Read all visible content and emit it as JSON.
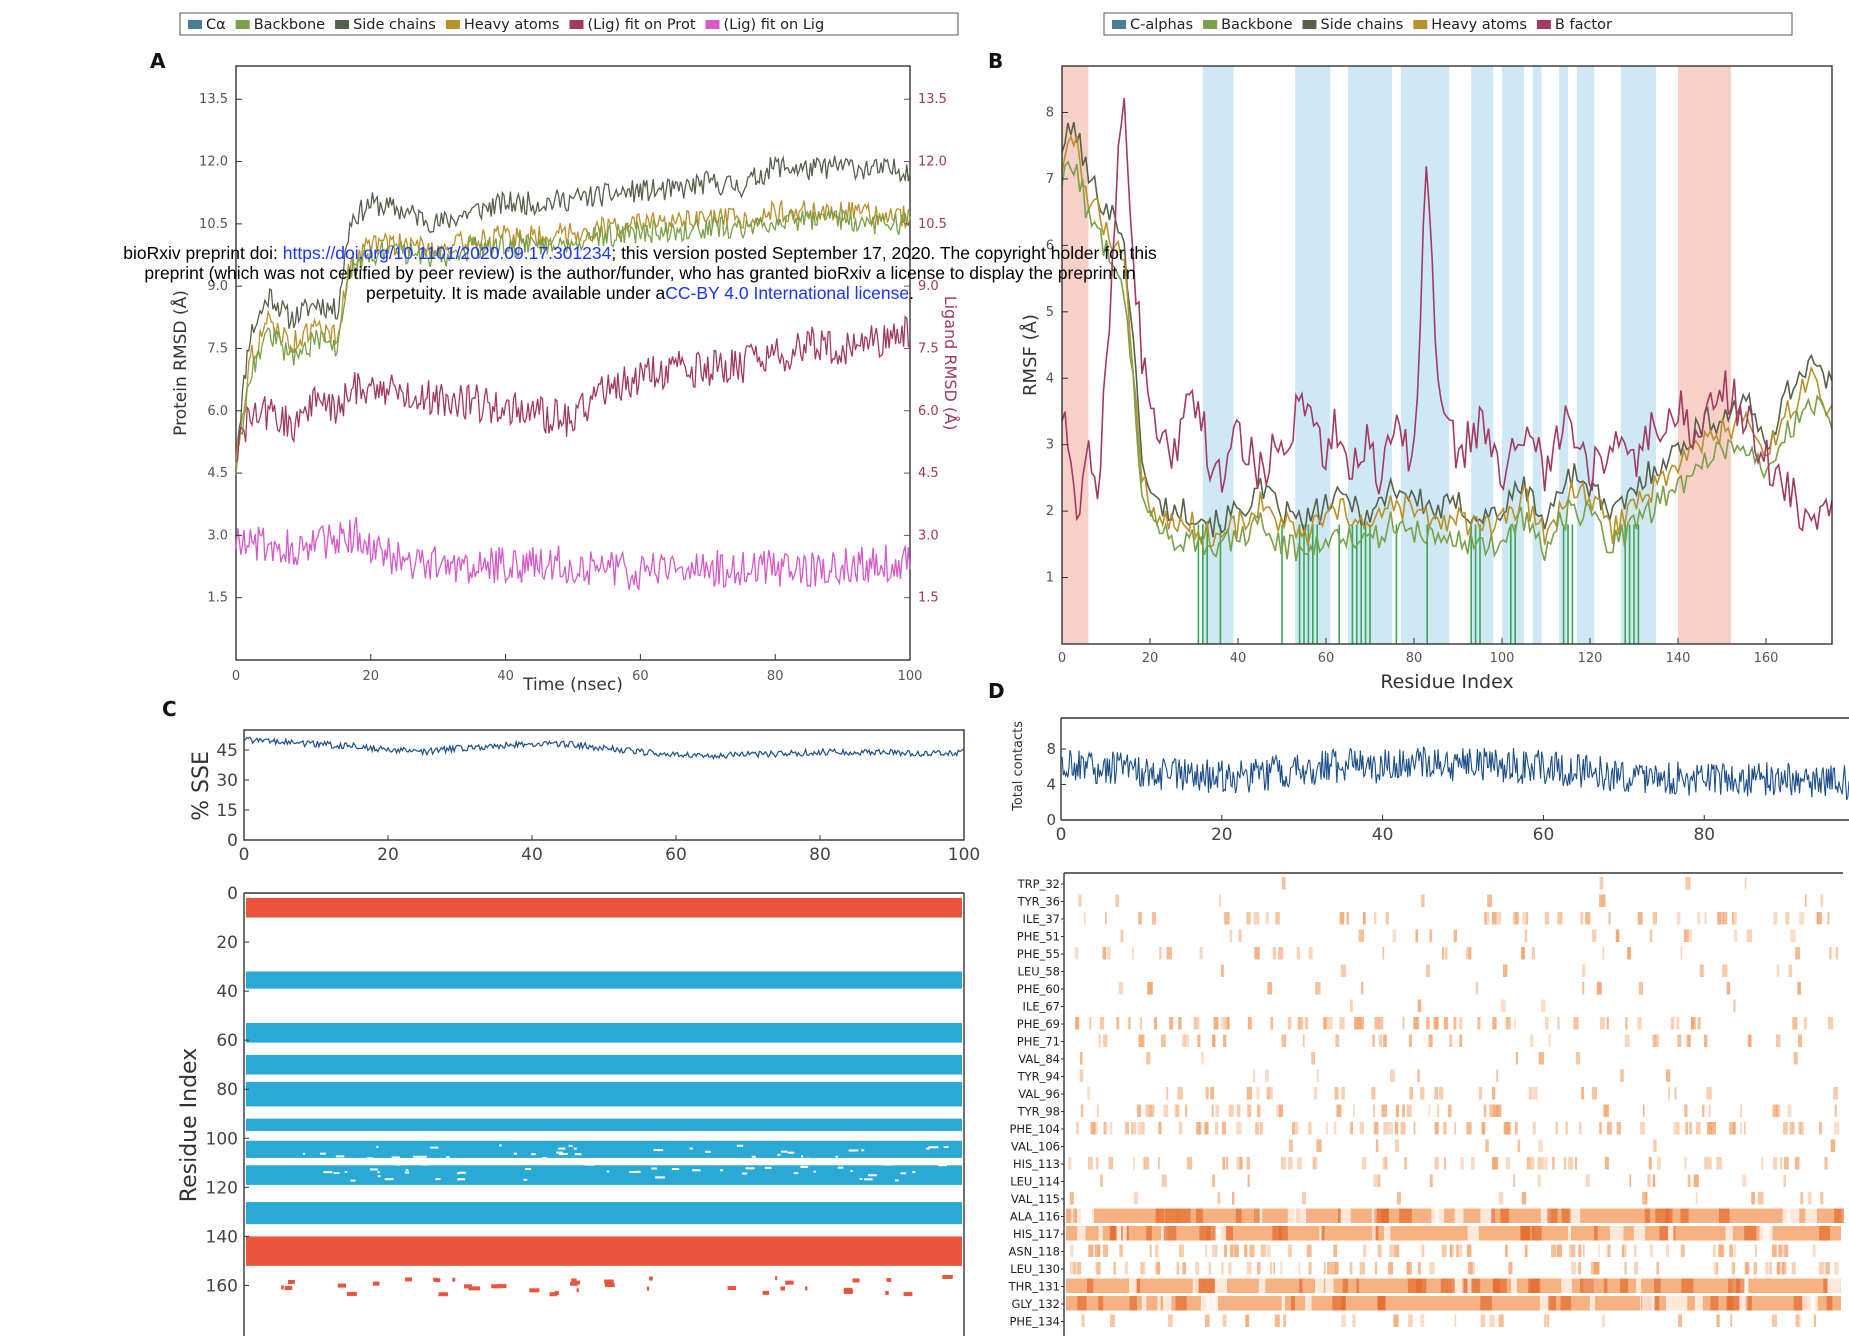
{
  "banner": {
    "prefix": "bioRxiv preprint doi: ",
    "doi_link": "https://doi.org/10.1101/2020.09.17.301234",
    "line1_rest": "; this version posted September 17, 2020. The copyright holder for this",
    "line2": "preprint (which was not certified by peer review) is the author/funder, who has granted bioRxiv a license to display the preprint in",
    "line3_pre": "perpetuity. It is made available under a",
    "license_link": "CC-BY 4.0 International license",
    "line3_post": "."
  },
  "colors": {
    "calpha": "#4a7e96",
    "backbone": "#7aa04a",
    "sidechain": "#55614a",
    "heavy": "#b8912a",
    "lig_prot": "#a23a5c",
    "lig_lig": "#d659c8",
    "bfactor": "#a33a62",
    "helix": "#e8553a",
    "strand": "#2aa9d6",
    "sse_line": "#1c4f8a",
    "contact": "#f3a36b",
    "contact_dark": "#e46b2c",
    "region_blue": "#cfe8f5",
    "region_red": "#f7d0c8",
    "green_bar": "#3aa556"
  },
  "chart_data": [
    {
      "panel": "A",
      "type": "line",
      "legend": [
        "Cα",
        "Backbone",
        "Side chains",
        "Heavy atoms",
        "(Lig) fit on Prot",
        "(Lig) fit on Lig"
      ],
      "xlabel": "Time (nsec)",
      "ylabel": "Protein RMSD (Å)",
      "ylabel_right": "Ligand RMSD (Å)",
      "xlim": [
        0,
        100
      ],
      "ylim": [
        0,
        14.3
      ],
      "x_ticks": [
        0,
        20,
        40,
        60,
        80,
        100
      ],
      "y_ticks": [
        1.5,
        3.0,
        4.5,
        6.0,
        7.5,
        9.0,
        10.5,
        12.0,
        13.5
      ],
      "y_tick_labels": [
        "1.5",
        "3.0",
        "4.5",
        "6.0",
        "7.5",
        "9.0",
        "10.5",
        "12.0",
        "13.5"
      ],
      "series": [
        {
          "name": "Side chains",
          "x": [
            0,
            2,
            5,
            8,
            12,
            15,
            17,
            20,
            25,
            30,
            35,
            40,
            45,
            50,
            55,
            60,
            65,
            70,
            75,
            80,
            85,
            90,
            95,
            100
          ],
          "y": [
            5.0,
            7.8,
            8.8,
            8.2,
            8.6,
            8.4,
            10.6,
            11.0,
            10.8,
            10.5,
            10.8,
            11.0,
            11.0,
            11.1,
            11.2,
            11.3,
            11.3,
            11.5,
            11.4,
            11.9,
            11.8,
            11.9,
            11.8,
            11.8
          ]
        },
        {
          "name": "Heavy atoms",
          "x": [
            0,
            2,
            5,
            8,
            12,
            15,
            17,
            20,
            25,
            30,
            35,
            40,
            45,
            50,
            55,
            60,
            65,
            70,
            75,
            80,
            85,
            90,
            95,
            100
          ],
          "y": [
            4.8,
            7.2,
            8.2,
            7.6,
            8.0,
            7.8,
            9.6,
            10.0,
            10.0,
            9.9,
            10.1,
            10.2,
            10.2,
            10.3,
            10.4,
            10.5,
            10.5,
            10.6,
            10.6,
            10.8,
            10.8,
            10.8,
            10.7,
            10.7
          ]
        },
        {
          "name": "Backbone",
          "x": [
            0,
            2,
            5,
            8,
            12,
            15,
            17,
            20,
            25,
            30,
            35,
            40,
            45,
            50,
            55,
            60,
            65,
            70,
            75,
            80,
            85,
            90,
            95,
            100
          ],
          "y": [
            4.6,
            6.9,
            7.9,
            7.3,
            7.7,
            7.5,
            9.4,
            9.8,
            9.8,
            9.7,
            9.9,
            10.0,
            10.0,
            10.1,
            10.2,
            10.3,
            10.3,
            10.4,
            10.4,
            10.6,
            10.6,
            10.6,
            10.5,
            10.5
          ]
        },
        {
          "name": "(Lig) fit on Prot",
          "x": [
            0,
            2,
            5,
            8,
            12,
            15,
            18,
            20,
            25,
            30,
            35,
            40,
            45,
            50,
            55,
            60,
            65,
            70,
            75,
            80,
            85,
            90,
            95,
            100
          ],
          "y": [
            5.0,
            5.8,
            6.0,
            5.6,
            6.3,
            6.0,
            6.6,
            6.6,
            6.4,
            6.3,
            6.2,
            6.1,
            5.9,
            5.8,
            6.6,
            6.8,
            7.0,
            7.0,
            7.1,
            7.3,
            7.6,
            7.4,
            7.7,
            7.9
          ]
        },
        {
          "name": "(Lig) fit on Lig",
          "x": [
            0,
            5,
            10,
            15,
            18,
            20,
            25,
            30,
            35,
            40,
            45,
            50,
            55,
            60,
            65,
            70,
            75,
            80,
            85,
            90,
            95,
            100
          ],
          "y": [
            2.9,
            2.8,
            2.7,
            2.9,
            3.0,
            2.6,
            2.4,
            2.3,
            2.2,
            2.3,
            2.3,
            2.3,
            2.2,
            2.1,
            2.2,
            2.2,
            2.2,
            2.2,
            2.2,
            2.3,
            2.3,
            2.4
          ]
        }
      ]
    },
    {
      "panel": "B",
      "type": "line",
      "legend": [
        "C-alphas",
        "Backbone",
        "Side chains",
        "Heavy atoms",
        "B factor"
      ],
      "xlabel": "Residue Index",
      "ylabel": "RMSF (Å)",
      "xlim": [
        0,
        175
      ],
      "ylim": [
        0,
        8.7
      ],
      "x_ticks": [
        0,
        20,
        40,
        60,
        80,
        100,
        120,
        140,
        160
      ],
      "y_ticks": [
        1,
        2,
        3,
        4,
        5,
        6,
        7,
        8
      ],
      "blue_regions": [
        [
          32,
          39
        ],
        [
          53,
          61
        ],
        [
          65,
          75
        ],
        [
          77,
          88
        ],
        [
          93,
          98
        ],
        [
          100,
          105
        ],
        [
          107,
          109
        ],
        [
          113,
          115
        ],
        [
          117,
          121
        ],
        [
          127,
          135
        ]
      ],
      "red_regions": [
        [
          0,
          6
        ],
        [
          140,
          152
        ]
      ],
      "green_bars": [
        31,
        32,
        33,
        36,
        50,
        54,
        55,
        56,
        57,
        58,
        63,
        66,
        67,
        68,
        69,
        70,
        76,
        83,
        93,
        94,
        95,
        102,
        103,
        114,
        115,
        116,
        128,
        129,
        130,
        131
      ],
      "series": [
        {
          "name": "Side chains",
          "x": [
            0,
            3,
            6,
            10,
            14,
            18,
            20,
            25,
            30,
            35,
            40,
            45,
            50,
            55,
            60,
            65,
            70,
            75,
            80,
            85,
            90,
            95,
            100,
            105,
            110,
            115,
            120,
            125,
            130,
            135,
            140,
            145,
            150,
            155,
            160,
            165,
            170,
            175
          ],
          "y": [
            7.5,
            7.8,
            7.0,
            6.6,
            6.2,
            3.0,
            2.2,
            2.0,
            2.0,
            1.8,
            2.0,
            2.3,
            2.0,
            1.8,
            2.1,
            2.2,
            1.9,
            2.4,
            2.2,
            2.0,
            2.1,
            1.9,
            2.0,
            2.4,
            1.8,
            2.6,
            2.4,
            1.9,
            2.3,
            2.7,
            2.9,
            3.3,
            3.4,
            3.7,
            3.0,
            3.8,
            4.3,
            3.8
          ]
        },
        {
          "name": "Heavy atoms",
          "x": [
            0,
            3,
            6,
            10,
            14,
            18,
            20,
            25,
            30,
            35,
            40,
            45,
            50,
            55,
            60,
            65,
            70,
            75,
            80,
            85,
            90,
            95,
            100,
            105,
            110,
            115,
            120,
            125,
            130,
            135,
            140,
            145,
            150,
            155,
            160,
            165,
            170,
            175
          ],
          "y": [
            7.2,
            7.6,
            6.7,
            6.3,
            5.8,
            2.7,
            2.0,
            1.8,
            1.8,
            1.6,
            1.8,
            2.1,
            1.8,
            1.6,
            1.9,
            2.0,
            1.7,
            2.1,
            2.0,
            1.8,
            1.9,
            1.7,
            1.8,
            2.2,
            1.6,
            2.3,
            2.2,
            1.7,
            2.1,
            2.4,
            2.7,
            3.0,
            3.2,
            3.4,
            2.8,
            3.5,
            4.0,
            3.5
          ]
        },
        {
          "name": "Backbone",
          "x": [
            0,
            3,
            6,
            10,
            14,
            18,
            20,
            25,
            30,
            35,
            40,
            45,
            50,
            55,
            60,
            65,
            70,
            75,
            80,
            85,
            90,
            95,
            100,
            105,
            110,
            115,
            120,
            125,
            130,
            135,
            140,
            145,
            150,
            155,
            160,
            165,
            170,
            175
          ],
          "y": [
            7.0,
            7.3,
            6.4,
            6.0,
            5.5,
            2.5,
            1.8,
            1.6,
            1.6,
            1.4,
            1.6,
            1.8,
            1.5,
            1.4,
            1.6,
            1.7,
            1.5,
            1.8,
            1.7,
            1.6,
            1.6,
            1.5,
            1.5,
            1.9,
            1.4,
            2.0,
            1.9,
            1.5,
            1.8,
            2.1,
            2.4,
            2.7,
            2.9,
            3.1,
            2.5,
            3.2,
            3.7,
            3.2
          ]
        },
        {
          "name": "B factor",
          "x": [
            0,
            2,
            4,
            6,
            8,
            10,
            12,
            14,
            16,
            18,
            20,
            25,
            30,
            35,
            40,
            45,
            50,
            55,
            60,
            62,
            65,
            70,
            72,
            75,
            80,
            83,
            85,
            90,
            95,
            100,
            105,
            110,
            115,
            120,
            125,
            130,
            135,
            140,
            145,
            150,
            155,
            160,
            165,
            170,
            175
          ],
          "y": [
            3.5,
            2.5,
            1.8,
            3.0,
            2.2,
            4.0,
            6.5,
            8.5,
            6.0,
            4.5,
            3.5,
            2.8,
            3.8,
            2.4,
            3.2,
            2.6,
            3.0,
            3.8,
            2.8,
            3.5,
            2.6,
            3.2,
            2.4,
            3.4,
            2.7,
            7.5,
            4.0,
            2.8,
            3.3,
            2.5,
            3.2,
            2.6,
            3.4,
            2.5,
            3.0,
            2.6,
            3.3,
            3.6,
            3.1,
            3.9,
            3.5,
            2.8,
            2.3,
            1.9,
            2.2
          ]
        }
      ]
    },
    {
      "panel": "C",
      "type": "line",
      "ylabel": "% SSE",
      "xlim": [
        0,
        100
      ],
      "ylim": [
        0,
        55
      ],
      "x_ticks": [
        0,
        20,
        40,
        60,
        80,
        100
      ],
      "y_ticks": [
        0,
        15,
        30,
        45
      ],
      "y_tick_labels": [
        "0",
        "15",
        "30",
        "45"
      ],
      "series": [
        {
          "name": "",
          "x": [
            0,
            5,
            10,
            15,
            20,
            25,
            30,
            35,
            40,
            45,
            50,
            55,
            60,
            65,
            70,
            75,
            80,
            85,
            90,
            95,
            100
          ],
          "y": [
            50,
            49,
            48,
            47,
            45,
            44,
            46,
            47,
            48,
            48,
            46,
            44,
            43,
            42,
            43,
            43,
            44,
            44,
            44,
            43,
            44
          ]
        }
      ]
    },
    {
      "panel": "C",
      "type": "heatmap",
      "ylabel": "Residue Index",
      "xlim": [
        0,
        100
      ],
      "ylim": [
        0,
        170
      ],
      "y_ticks": [
        0,
        20,
        40,
        60,
        80,
        100,
        120,
        140,
        160
      ],
      "helix_bands": [
        [
          2,
          10
        ],
        [
          140,
          152
        ]
      ],
      "strand_bands": [
        [
          32,
          39
        ],
        [
          53,
          61
        ],
        [
          66,
          74
        ],
        [
          77,
          87
        ],
        [
          92,
          97
        ],
        [
          101,
          108
        ],
        [
          111,
          119
        ],
        [
          126,
          135
        ]
      ]
    },
    {
      "panel": "D",
      "type": "line",
      "ylabel": "Total contacts",
      "xlim": [
        0,
        98
      ],
      "ylim": [
        0,
        11.5
      ],
      "x_ticks": [
        0,
        20,
        40,
        60,
        80
      ],
      "y_ticks": [
        0,
        4,
        8
      ],
      "series": [
        {
          "name": "",
          "x": [
            0,
            5,
            10,
            15,
            20,
            25,
            30,
            35,
            40,
            45,
            50,
            55,
            60,
            65,
            70,
            75,
            80,
            85,
            90,
            95,
            98
          ],
          "y": [
            6.2,
            6.0,
            5.5,
            5.0,
            4.8,
            5.0,
            5.8,
            6.2,
            6.0,
            6.4,
            6.3,
            6.2,
            5.9,
            5.5,
            5.0,
            4.8,
            4.6,
            4.5,
            4.7,
            4.4,
            4.2
          ]
        }
      ]
    },
    {
      "panel": "D",
      "type": "heatmap",
      "residues": [
        "TRP_32",
        "TYR_36",
        "ILE_37",
        "PHE_51",
        "PHE_55",
        "LEU_58",
        "PHE_60",
        "ILE_67",
        "PHE_69",
        "PHE_71",
        "VAL_84",
        "TYR_94",
        "VAL_96",
        "TYR_98",
        "PHE_104",
        "VAL_106",
        "HIS_113",
        "LEU_114",
        "VAL_115",
        "ALA_116",
        "HIS_117",
        "ASN_118",
        "LEU_130",
        "THR_131",
        "GLY_132",
        "PHE_134"
      ],
      "contact_density": [
        0.02,
        0.05,
        0.25,
        0.1,
        0.15,
        0.05,
        0.08,
        0.03,
        0.35,
        0.2,
        0.05,
        0.05,
        0.15,
        0.25,
        0.45,
        0.05,
        0.3,
        0.1,
        0.1,
        0.8,
        0.75,
        0.4,
        0.4,
        0.7,
        0.75,
        0.15
      ]
    }
  ]
}
